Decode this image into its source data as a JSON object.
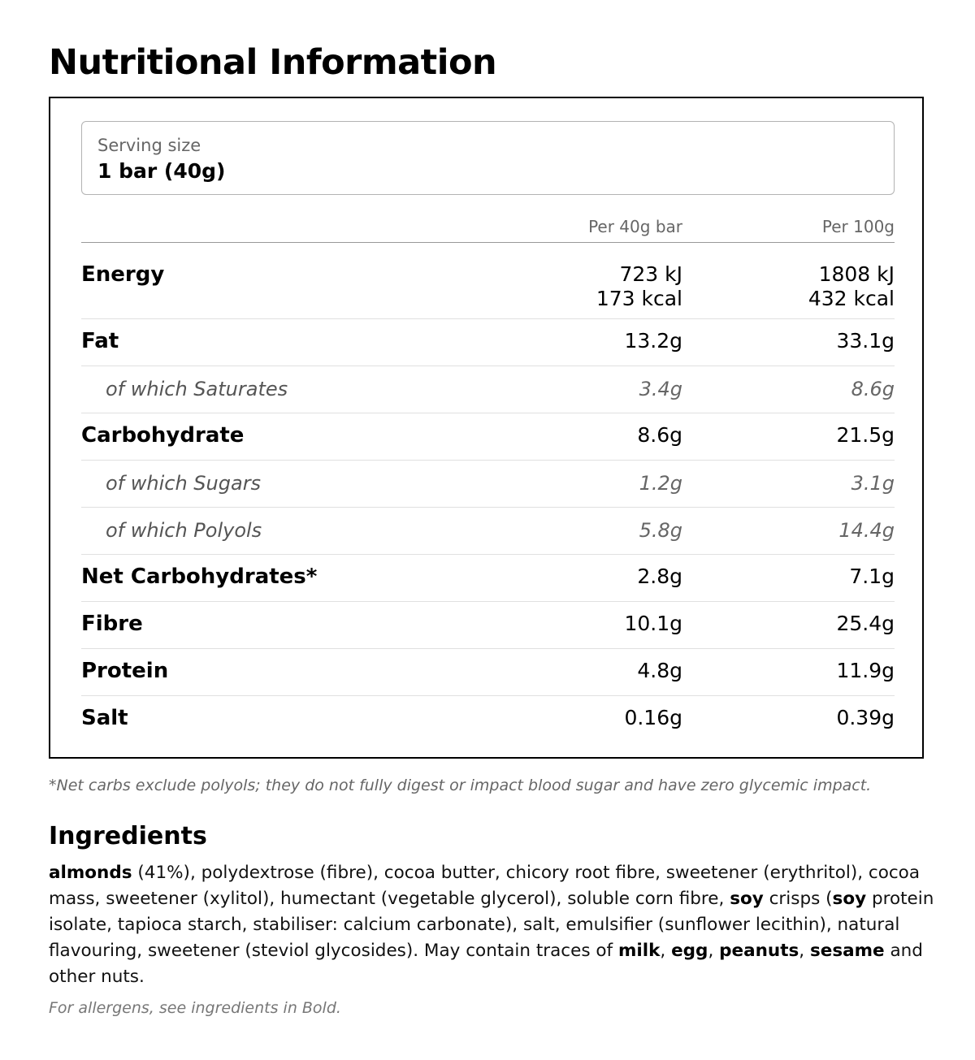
{
  "title": "Nutritional Information",
  "serving": {
    "label": "Serving size",
    "value": "1 bar (40g)"
  },
  "columns": {
    "per_bar": "Per 40g bar",
    "per_100g": "Per 100g"
  },
  "nutrients": {
    "energy": {
      "name": "Energy",
      "bar_kj": "723 kJ",
      "bar_kcal": "173 kcal",
      "g100_kj": "1808 kJ",
      "g100_kcal": "432 kcal"
    },
    "fat": {
      "name": "Fat",
      "bar": "13.2g",
      "g100": "33.1g"
    },
    "saturates": {
      "name": "of which Saturates",
      "bar": "3.4g",
      "g100": "8.6g"
    },
    "carbohydrate": {
      "name": "Carbohydrate",
      "bar": "8.6g",
      "g100": "21.5g"
    },
    "sugars": {
      "name": "of which Sugars",
      "bar": "1.2g",
      "g100": "3.1g"
    },
    "polyols": {
      "name": "of which Polyols",
      "bar": "5.8g",
      "g100": "14.4g"
    },
    "net_carbs": {
      "name": "Net Carbohydrates*",
      "bar": "2.8g",
      "g100": "7.1g"
    },
    "fibre": {
      "name": "Fibre",
      "bar": "10.1g",
      "g100": "25.4g"
    },
    "protein": {
      "name": "Protein",
      "bar": "4.8g",
      "g100": "11.9g"
    },
    "salt": {
      "name": "Salt",
      "bar": "0.16g",
      "g100": "0.39g"
    }
  },
  "footnote": "*Net carbs exclude polyols; they do not fully digest or impact blood sugar and have zero glycemic impact.",
  "ingredients": {
    "title": "Ingredients",
    "parts": [
      {
        "bold": true,
        "text": "almonds"
      },
      {
        "bold": false,
        "text": " (41%), polydextrose (fibre), cocoa butter, chicory root fibre, sweetener (erythritol), cocoa mass, sweetener (xylitol), humectant (vegetable glycerol), soluble corn fibre, "
      },
      {
        "bold": true,
        "text": "soy"
      },
      {
        "bold": false,
        "text": " crisps ("
      },
      {
        "bold": true,
        "text": "soy"
      },
      {
        "bold": false,
        "text": " protein isolate, tapioca starch, stabiliser: calcium carbonate), salt, emulsifier (sunflower lecithin), natural flavouring, sweetener (steviol glycosides). May contain traces of "
      },
      {
        "bold": true,
        "text": "milk"
      },
      {
        "bold": false,
        "text": ", "
      },
      {
        "bold": true,
        "text": "egg"
      },
      {
        "bold": false,
        "text": ", "
      },
      {
        "bold": true,
        "text": "peanuts"
      },
      {
        "bold": false,
        "text": ", "
      },
      {
        "bold": true,
        "text": "sesame"
      },
      {
        "bold": false,
        "text": " and other nuts."
      }
    ],
    "allergen_note": "For allergens, see ingredients in Bold."
  }
}
